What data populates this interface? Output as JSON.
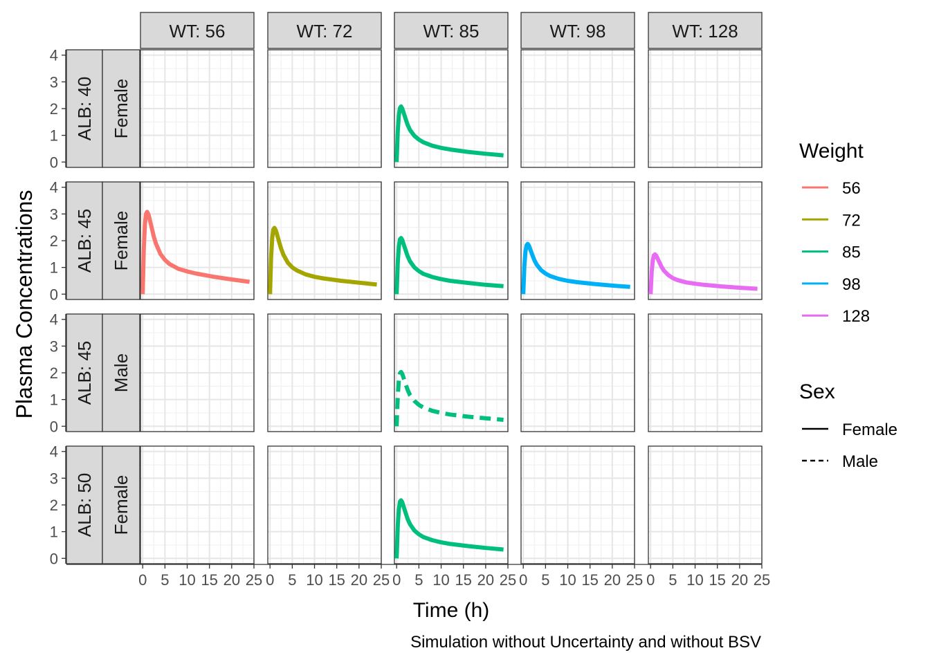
{
  "chart_data": {
    "type": "line",
    "facet_cols": {
      "title_prefix": "WT: ",
      "values": [
        "56",
        "72",
        "85",
        "98",
        "128"
      ]
    },
    "facet_rows": [
      {
        "alb": "ALB: 40",
        "sex": "Female"
      },
      {
        "alb": "ALB: 45",
        "sex": "Female"
      },
      {
        "alb": "ALB: 45",
        "sex": "Male"
      },
      {
        "alb": "ALB: 50",
        "sex": "Female"
      }
    ],
    "xlabel": "Time (h)",
    "ylabel": "Plasma Concentrations",
    "caption": "Simulation without Uncertainty and without BSV",
    "x_ticks": [
      "0",
      "5",
      "10",
      "15",
      "20",
      "25"
    ],
    "y_ticks": [
      "0",
      "1",
      "2",
      "3",
      "4"
    ],
    "xlim": [
      -0.5,
      25
    ],
    "ylim": [
      -0.2,
      4.2
    ],
    "grid": true,
    "legend_weight": {
      "title": "Weight",
      "entries": [
        {
          "label": "56",
          "color": "#F8766D"
        },
        {
          "label": "72",
          "color": "#A3A500"
        },
        {
          "label": "85",
          "color": "#00BF7D"
        },
        {
          "label": "98",
          "color": "#00B0F6"
        },
        {
          "label": "128",
          "color": "#E76BF3"
        }
      ]
    },
    "legend_sex": {
      "title": "Sex",
      "entries": [
        {
          "label": "Female",
          "linetype": "solid"
        },
        {
          "label": "Male",
          "linetype": "dashed"
        }
      ]
    },
    "series": [
      {
        "row": 0,
        "col": 2,
        "weight": "85",
        "sex": "Female",
        "x": [
          0,
          0.25,
          0.5,
          0.75,
          1,
          1.25,
          1.5,
          2,
          2.5,
          3,
          4,
          5,
          6,
          8,
          10,
          12,
          16,
          20,
          24
        ],
        "y": [
          0,
          1.15,
          1.75,
          2.02,
          2.08,
          2.0,
          1.88,
          1.62,
          1.38,
          1.2,
          0.98,
          0.84,
          0.74,
          0.61,
          0.53,
          0.47,
          0.38,
          0.31,
          0.25
        ]
      },
      {
        "row": 1,
        "col": 0,
        "weight": "56",
        "sex": "Female",
        "x": [
          0,
          0.25,
          0.5,
          0.75,
          1,
          1.25,
          1.5,
          2,
          2.5,
          3,
          4,
          5,
          6,
          8,
          10,
          12,
          16,
          20,
          24
        ],
        "y": [
          0,
          1.7,
          2.6,
          3.0,
          3.08,
          3.0,
          2.85,
          2.5,
          2.15,
          1.88,
          1.5,
          1.28,
          1.13,
          0.95,
          0.85,
          0.77,
          0.65,
          0.55,
          0.46
        ]
      },
      {
        "row": 1,
        "col": 1,
        "weight": "72",
        "sex": "Female",
        "x": [
          0,
          0.25,
          0.5,
          0.75,
          1,
          1.25,
          1.5,
          2,
          2.5,
          3,
          4,
          5,
          6,
          8,
          10,
          12,
          16,
          20,
          24
        ],
        "y": [
          0,
          1.4,
          2.1,
          2.42,
          2.48,
          2.4,
          2.28,
          1.98,
          1.7,
          1.48,
          1.18,
          1.0,
          0.89,
          0.74,
          0.65,
          0.59,
          0.5,
          0.43,
          0.36
        ]
      },
      {
        "row": 1,
        "col": 2,
        "weight": "85",
        "sex": "Female",
        "x": [
          0,
          0.25,
          0.5,
          0.75,
          1,
          1.25,
          1.5,
          2,
          2.5,
          3,
          4,
          5,
          6,
          8,
          10,
          12,
          16,
          20,
          24
        ],
        "y": [
          0,
          1.18,
          1.78,
          2.05,
          2.1,
          2.03,
          1.9,
          1.65,
          1.41,
          1.23,
          1.0,
          0.86,
          0.76,
          0.64,
          0.56,
          0.5,
          0.42,
          0.35,
          0.3
        ]
      },
      {
        "row": 1,
        "col": 3,
        "weight": "98",
        "sex": "Female",
        "x": [
          0,
          0.25,
          0.5,
          0.75,
          1,
          1.25,
          1.5,
          2,
          2.5,
          3,
          4,
          5,
          6,
          8,
          10,
          12,
          16,
          20,
          24
        ],
        "y": [
          0,
          1.06,
          1.6,
          1.83,
          1.88,
          1.82,
          1.71,
          1.48,
          1.27,
          1.11,
          0.9,
          0.77,
          0.68,
          0.57,
          0.5,
          0.45,
          0.38,
          0.32,
          0.27
        ]
      },
      {
        "row": 1,
        "col": 4,
        "weight": "128",
        "sex": "Female",
        "x": [
          0,
          0.25,
          0.5,
          0.75,
          1,
          1.25,
          1.5,
          2,
          2.5,
          3,
          4,
          5,
          6,
          8,
          10,
          12,
          16,
          20,
          24
        ],
        "y": [
          0,
          0.84,
          1.26,
          1.45,
          1.49,
          1.44,
          1.36,
          1.18,
          1.01,
          0.88,
          0.71,
          0.6,
          0.53,
          0.44,
          0.39,
          0.35,
          0.29,
          0.24,
          0.2
        ]
      },
      {
        "row": 2,
        "col": 2,
        "weight": "85",
        "sex": "Male",
        "x": [
          0,
          0.25,
          0.5,
          0.75,
          1,
          1.25,
          1.5,
          2,
          2.5,
          3,
          4,
          5,
          6,
          8,
          10,
          12,
          16,
          20,
          24
        ],
        "y": [
          0,
          1.12,
          1.72,
          1.98,
          2.03,
          1.96,
          1.84,
          1.58,
          1.35,
          1.17,
          0.95,
          0.8,
          0.7,
          0.58,
          0.5,
          0.44,
          0.36,
          0.3,
          0.24
        ]
      },
      {
        "row": 3,
        "col": 2,
        "weight": "85",
        "sex": "Female",
        "x": [
          0,
          0.25,
          0.5,
          0.75,
          1,
          1.25,
          1.5,
          2,
          2.5,
          3,
          4,
          5,
          6,
          8,
          10,
          12,
          16,
          20,
          24
        ],
        "y": [
          0,
          1.22,
          1.84,
          2.12,
          2.17,
          2.1,
          1.97,
          1.71,
          1.46,
          1.28,
          1.04,
          0.9,
          0.8,
          0.68,
          0.6,
          0.54,
          0.46,
          0.39,
          0.33
        ]
      }
    ]
  }
}
